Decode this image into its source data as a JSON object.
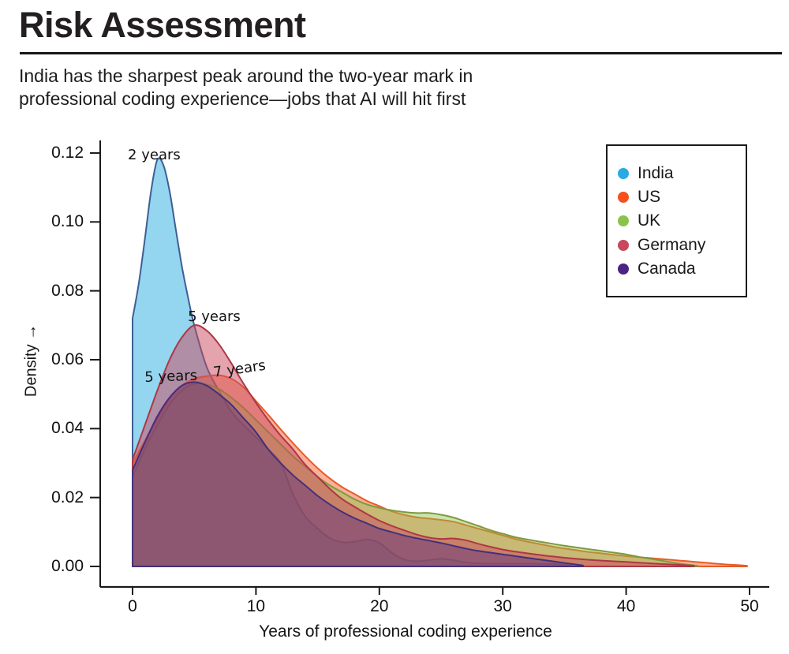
{
  "header": {
    "title": "Risk Assessment",
    "subtitle_line1": "India has the sharpest peak around the two-year mark in",
    "subtitle_line2": "professional coding experience—jobs that AI will hit first"
  },
  "chart_data": {
    "type": "area",
    "subtype": "kde-density",
    "title": "Risk Assessment",
    "xlabel": "Years of professional coding experience",
    "ylabel": "Density →",
    "xlim": [
      0,
      50
    ],
    "ylim": [
      0,
      0.12
    ],
    "grid": false,
    "legend_position": "upper right",
    "xticks": [
      0,
      10,
      20,
      30,
      40,
      50
    ],
    "xtick_labels": [
      "0",
      "10",
      "20",
      "30",
      "40",
      "50"
    ],
    "yticks": [
      0,
      0.02,
      0.04,
      0.06,
      0.08,
      0.1,
      0.12
    ],
    "ytick_labels": [
      "0.00",
      "0.02",
      "0.04",
      "0.06",
      "0.08",
      "0.10",
      "0.12"
    ],
    "annotations": [
      {
        "text": "2 years",
        "x": -0.38,
        "y": 0.1218,
        "rotation": 0
      },
      {
        "text": "5 years",
        "x": 4.48,
        "y": 0.0749,
        "rotation": 0
      },
      {
        "text": "5 years",
        "x": 0.96,
        "y": 0.0572,
        "rotation": -2
      },
      {
        "text": "7 years",
        "x": 6.46,
        "y": 0.0586,
        "rotation": -8
      }
    ],
    "series": [
      {
        "name": "India",
        "color": "#29abe2",
        "stroke": "#3d5f94",
        "fill_alpha": 0.5,
        "peak_label": "2 years",
        "points": [
          [
            0,
            0.072
          ],
          [
            0.5,
            0.082
          ],
          [
            1,
            0.095
          ],
          [
            1.5,
            0.109
          ],
          [
            2,
            0.118
          ],
          [
            2.5,
            0.1165
          ],
          [
            3,
            0.109
          ],
          [
            3.5,
            0.098
          ],
          [
            4,
            0.087
          ],
          [
            4.5,
            0.078
          ],
          [
            5,
            0.07
          ],
          [
            6,
            0.058
          ],
          [
            7,
            0.051
          ],
          [
            8,
            0.045
          ],
          [
            9,
            0.041
          ],
          [
            10,
            0.0375
          ],
          [
            11,
            0.034
          ],
          [
            12,
            0.03
          ],
          [
            13,
            0.021
          ],
          [
            14,
            0.0145
          ],
          [
            15,
            0.011
          ],
          [
            16,
            0.0082
          ],
          [
            17,
            0.007
          ],
          [
            18,
            0.0072
          ],
          [
            19,
            0.0078
          ],
          [
            20,
            0.0068
          ],
          [
            21,
            0.004
          ],
          [
            22,
            0.002
          ],
          [
            23,
            0.0015
          ],
          [
            24,
            0.0018
          ],
          [
            25,
            0.0022
          ],
          [
            26,
            0.0018
          ],
          [
            27,
            0.0012
          ],
          [
            28,
            0.0009
          ],
          [
            30,
            0.0008
          ],
          [
            32,
            0.0008
          ],
          [
            34,
            0.0007
          ],
          [
            35.5,
            0.0003
          ]
        ]
      },
      {
        "name": "US",
        "color": "#f4511e",
        "stroke": "#e85c28",
        "fill_alpha": 0.45,
        "peak_label": "7 years",
        "points": [
          [
            0,
            0.03
          ],
          [
            1,
            0.0365
          ],
          [
            2,
            0.043
          ],
          [
            3,
            0.0488
          ],
          [
            4,
            0.0525
          ],
          [
            5,
            0.0545
          ],
          [
            6,
            0.0552
          ],
          [
            7,
            0.0555
          ],
          [
            8,
            0.0545
          ],
          [
            9,
            0.052
          ],
          [
            10,
            0.048
          ],
          [
            11,
            0.044
          ],
          [
            12,
            0.0398
          ],
          [
            13,
            0.0358
          ],
          [
            14,
            0.032
          ],
          [
            15,
            0.0285
          ],
          [
            16,
            0.0255
          ],
          [
            17,
            0.023
          ],
          [
            18,
            0.021
          ],
          [
            19,
            0.019
          ],
          [
            20,
            0.0175
          ],
          [
            21,
            0.016
          ],
          [
            22,
            0.015
          ],
          [
            23,
            0.0143
          ],
          [
            24,
            0.0139
          ],
          [
            25,
            0.0135
          ],
          [
            26,
            0.013
          ],
          [
            27,
            0.012
          ],
          [
            28,
            0.011
          ],
          [
            29,
            0.01
          ],
          [
            30,
            0.009
          ],
          [
            31,
            0.008
          ],
          [
            32,
            0.0072
          ],
          [
            33,
            0.0065
          ],
          [
            34,
            0.0058
          ],
          [
            35,
            0.0052
          ],
          [
            36,
            0.0047
          ],
          [
            37,
            0.0042
          ],
          [
            38,
            0.0038
          ],
          [
            39,
            0.0034
          ],
          [
            40,
            0.003
          ],
          [
            41,
            0.0027
          ],
          [
            42,
            0.0024
          ],
          [
            43,
            0.0021
          ],
          [
            44,
            0.0018
          ],
          [
            45,
            0.0015
          ],
          [
            46,
            0.0012
          ],
          [
            47,
            0.0009
          ],
          [
            48,
            0.0006
          ],
          [
            49,
            0.0004
          ],
          [
            49.8,
            0.0002
          ]
        ]
      },
      {
        "name": "UK",
        "color": "#8bc34a",
        "stroke": "#7f9a3e",
        "fill_alpha": 0.45,
        "peak_label": "5 years",
        "points": [
          [
            0,
            0.026
          ],
          [
            1,
            0.034
          ],
          [
            2,
            0.041
          ],
          [
            3,
            0.047
          ],
          [
            4,
            0.051
          ],
          [
            5,
            0.053
          ],
          [
            6,
            0.0528
          ],
          [
            7,
            0.0515
          ],
          [
            8,
            0.049
          ],
          [
            9,
            0.046
          ],
          [
            10,
            0.0425
          ],
          [
            11,
            0.039
          ],
          [
            12,
            0.0355
          ],
          [
            13,
            0.032
          ],
          [
            14,
            0.029
          ],
          [
            15,
            0.026
          ],
          [
            16,
            0.0235
          ],
          [
            17,
            0.0215
          ],
          [
            18,
            0.0195
          ],
          [
            19,
            0.018
          ],
          [
            20,
            0.017
          ],
          [
            21,
            0.0163
          ],
          [
            22,
            0.0158
          ],
          [
            23,
            0.0155
          ],
          [
            24,
            0.0155
          ],
          [
            25,
            0.015
          ],
          [
            26,
            0.0142
          ],
          [
            27,
            0.013
          ],
          [
            28,
            0.0118
          ],
          [
            29,
            0.0105
          ],
          [
            30,
            0.0095
          ],
          [
            31,
            0.0085
          ],
          [
            32,
            0.0078
          ],
          [
            33,
            0.0072
          ],
          [
            34,
            0.0066
          ],
          [
            35,
            0.006
          ],
          [
            36,
            0.0055
          ],
          [
            37,
            0.005
          ],
          [
            38,
            0.0045
          ],
          [
            39,
            0.004
          ],
          [
            40,
            0.0035
          ],
          [
            41,
            0.0028
          ],
          [
            42,
            0.0022
          ],
          [
            43,
            0.0016
          ],
          [
            44,
            0.001
          ],
          [
            45,
            0.0005
          ],
          [
            45.8,
            0.0002
          ]
        ]
      },
      {
        "name": "Germany",
        "color": "#c9485b",
        "stroke": "#ae3745",
        "fill_alpha": 0.5,
        "peak_label": "5 years",
        "points": [
          [
            0,
            0.031
          ],
          [
            1,
            0.041
          ],
          [
            2,
            0.051
          ],
          [
            3,
            0.06
          ],
          [
            4,
            0.0665
          ],
          [
            5,
            0.07
          ],
          [
            6,
            0.0685
          ],
          [
            7,
            0.0645
          ],
          [
            8,
            0.059
          ],
          [
            9,
            0.053
          ],
          [
            10,
            0.0475
          ],
          [
            11,
            0.0425
          ],
          [
            12,
            0.038
          ],
          [
            13,
            0.034
          ],
          [
            14,
            0.0295
          ],
          [
            15,
            0.026
          ],
          [
            16,
            0.0225
          ],
          [
            17,
            0.0195
          ],
          [
            18,
            0.0173
          ],
          [
            19,
            0.0152
          ],
          [
            20,
            0.0133
          ],
          [
            21,
            0.0118
          ],
          [
            22,
            0.0105
          ],
          [
            23,
            0.0093
          ],
          [
            24,
            0.0084
          ],
          [
            25,
            0.008
          ],
          [
            26,
            0.0081
          ],
          [
            27,
            0.0076
          ],
          [
            28,
            0.0066
          ],
          [
            29,
            0.0057
          ],
          [
            30,
            0.0049
          ],
          [
            31,
            0.0043
          ],
          [
            32,
            0.0038
          ],
          [
            34,
            0.0029
          ],
          [
            36,
            0.0022
          ],
          [
            38,
            0.0017
          ],
          [
            40,
            0.0013
          ],
          [
            42,
            0.0009
          ],
          [
            44,
            0.0005
          ],
          [
            45.5,
            0.0002
          ]
        ]
      },
      {
        "name": "Canada",
        "color": "#4b2482",
        "stroke": "#44307c",
        "fill_alpha": 0.4,
        "peak_label": "5 years",
        "points": [
          [
            0,
            0.028
          ],
          [
            1,
            0.036
          ],
          [
            2,
            0.0435
          ],
          [
            3,
            0.049
          ],
          [
            4,
            0.0525
          ],
          [
            5,
            0.0535
          ],
          [
            6,
            0.0525
          ],
          [
            7,
            0.05
          ],
          [
            8,
            0.047
          ],
          [
            9,
            0.043
          ],
          [
            10,
            0.039
          ],
          [
            11,
            0.034
          ],
          [
            12,
            0.03
          ],
          [
            13,
            0.0265
          ],
          [
            14,
            0.0235
          ],
          [
            15,
            0.0205
          ],
          [
            16,
            0.018
          ],
          [
            17,
            0.0158
          ],
          [
            18,
            0.014
          ],
          [
            19,
            0.0125
          ],
          [
            20,
            0.011
          ],
          [
            21,
            0.01
          ],
          [
            22,
            0.009
          ],
          [
            23,
            0.0082
          ],
          [
            24,
            0.0075
          ],
          [
            25,
            0.0068
          ],
          [
            26,
            0.006
          ],
          [
            27,
            0.0052
          ],
          [
            28,
            0.0045
          ],
          [
            29,
            0.004
          ],
          [
            30,
            0.0035
          ],
          [
            31,
            0.003
          ],
          [
            32,
            0.0025
          ],
          [
            33,
            0.002
          ],
          [
            34,
            0.0015
          ],
          [
            35,
            0.001
          ],
          [
            36.5,
            0.0003
          ]
        ]
      }
    ]
  }
}
